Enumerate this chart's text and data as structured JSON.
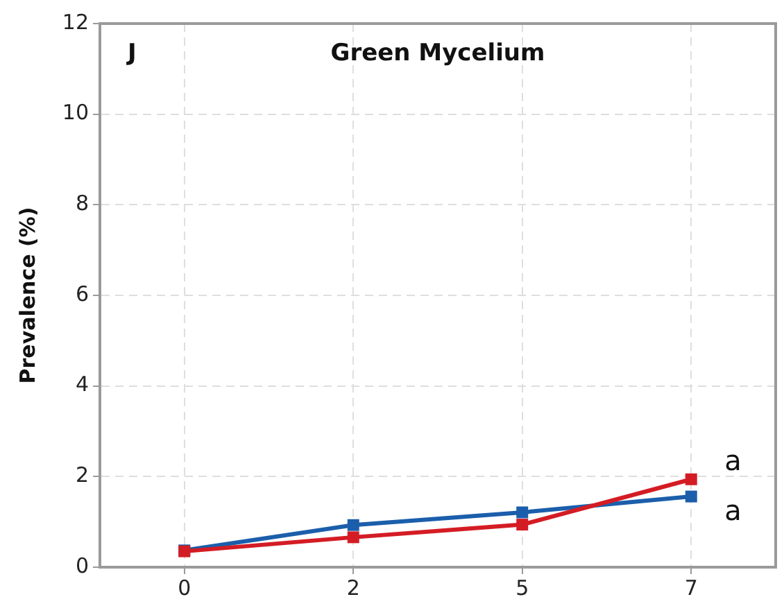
{
  "chart_data": {
    "type": "line",
    "title": "Green Mycelium",
    "ylabel": "Prevalence (%)",
    "annotations": [
      "J",
      {
        "text": "a",
        "x": "7",
        "y": 1.94
      },
      {
        "text": "a",
        "x": "7",
        "y": 1.56
      }
    ],
    "categories": [
      "0",
      "2",
      "5",
      "7"
    ],
    "series": [
      {
        "color": "#1b5eab",
        "values": [
          0.37,
          0.93,
          1.21,
          1.56
        ]
      },
      {
        "color": "#d41c24",
        "values": [
          0.35,
          0.66,
          0.94,
          1.94
        ]
      }
    ],
    "ylim": [
      0,
      12
    ],
    "yticks": [
      0,
      2,
      4,
      6,
      8,
      10,
      12
    ],
    "grid": true,
    "marker": "square",
    "line_style": "solid"
  }
}
